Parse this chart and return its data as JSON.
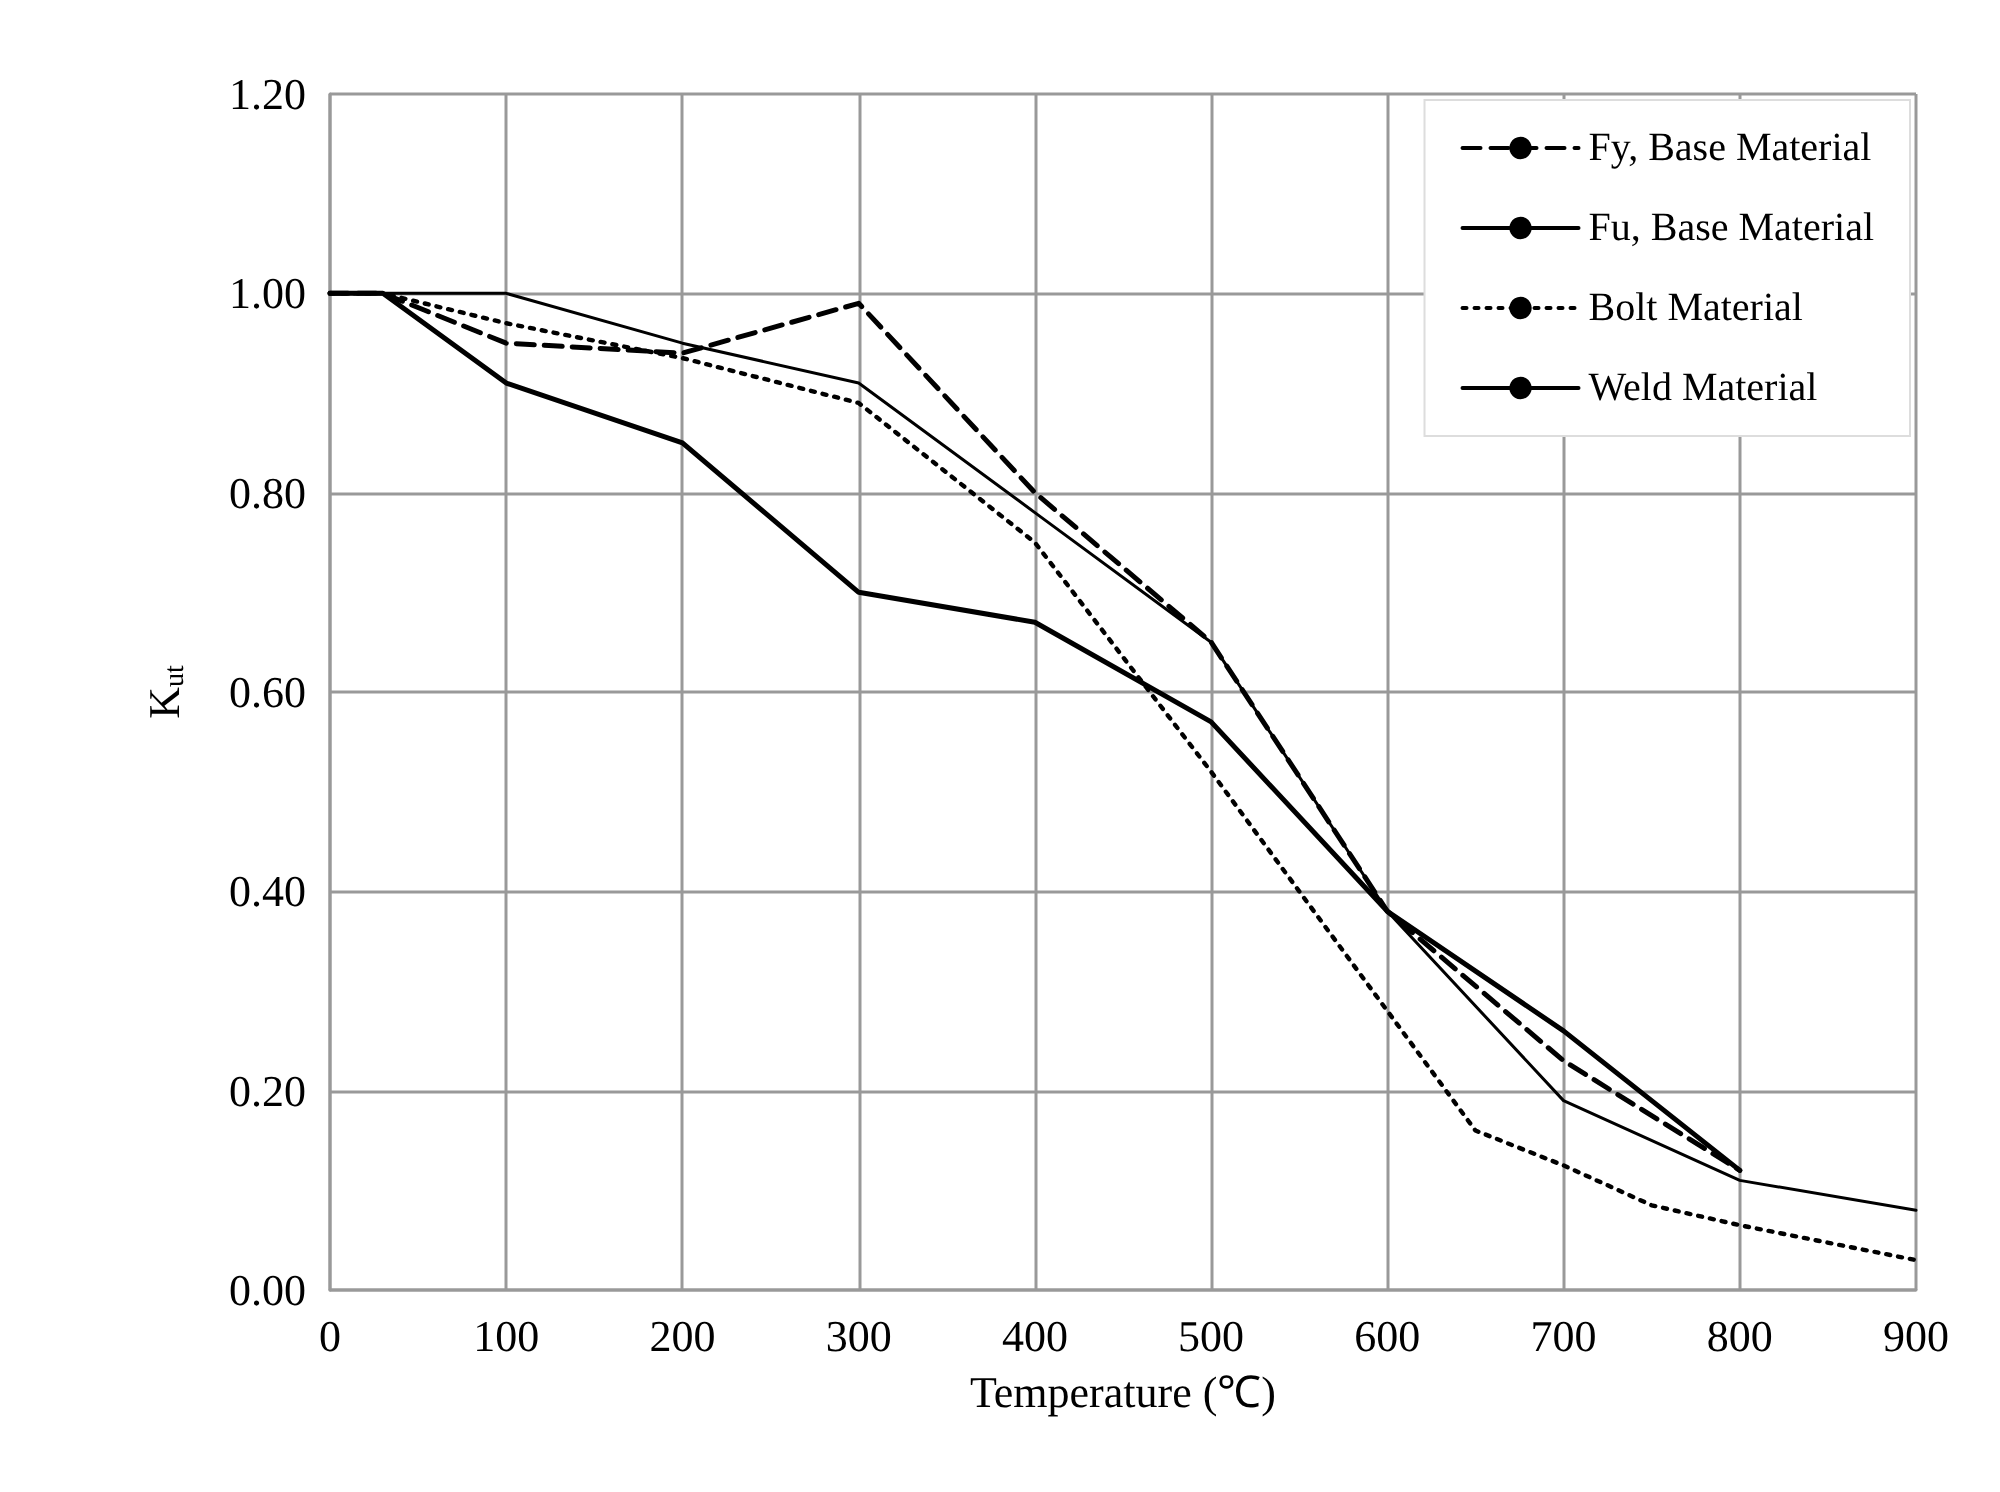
{
  "chart_data": {
    "type": "line",
    "xlabel": "Temperature (℃)",
    "ylabel": "K$_{ut}$",
    "xlim": [
      0,
      900
    ],
    "xticks": [
      0,
      100,
      200,
      300,
      400,
      500,
      600,
      700,
      800,
      900
    ],
    "ylim": [
      0,
      1.2
    ],
    "yticks": [
      {
        "value": 0,
        "label": "0.00"
      },
      {
        "value": 0.2,
        "label": "0.20"
      },
      {
        "value": 0.4,
        "label": "0.40"
      },
      {
        "value": 0.6,
        "label": "0.60"
      },
      {
        "value": 0.8,
        "label": "0.80"
      },
      {
        "value": 1.0,
        "label": "1.00"
      },
      {
        "value": 1.2,
        "label": "1.20"
      }
    ],
    "grid": true,
    "legend": "top right",
    "marker": "none",
    "series": [
      {
        "name": "Fy, Base Material",
        "color": "#000000",
        "line_style": "dashed",
        "x": [
          0,
          30,
          100,
          200,
          300,
          400,
          500,
          600,
          700,
          800
        ],
        "values": [
          1.0,
          1.0,
          0.95,
          0.94,
          0.99,
          0.8,
          0.65,
          0.38,
          0.23,
          0.12
        ]
      },
      {
        "name": "Fu, Base Material",
        "color": "#000000",
        "line_style": "solid",
        "x": [
          0,
          30,
          100,
          200,
          300,
          400,
          500,
          600,
          700,
          800
        ],
        "values": [
          1.0,
          1.0,
          0.91,
          0.85,
          0.7,
          0.67,
          0.57,
          0.38,
          0.26,
          0.12
        ]
      },
      {
        "name": "Bolt Material",
        "color": "#000000",
        "line_style": "dotted",
        "x": [
          0,
          30,
          100,
          200,
          300,
          400,
          500,
          550,
          600,
          650,
          700,
          750,
          800,
          900
        ],
        "values": [
          1.0,
          1.0,
          0.97,
          0.935,
          0.89,
          0.75,
          0.52,
          0.4,
          0.28,
          0.16,
          0.125,
          0.085,
          0.065,
          0.03
        ]
      },
      {
        "name": "Weld Material",
        "color": "#000000",
        "line_style": "solid",
        "x": [
          0,
          100,
          200,
          300,
          400,
          500,
          600,
          700,
          800,
          900
        ],
        "values": [
          1.0,
          1.0,
          0.95,
          0.91,
          0.78,
          0.65,
          0.38,
          0.19,
          0.11,
          0.08
        ]
      }
    ]
  }
}
